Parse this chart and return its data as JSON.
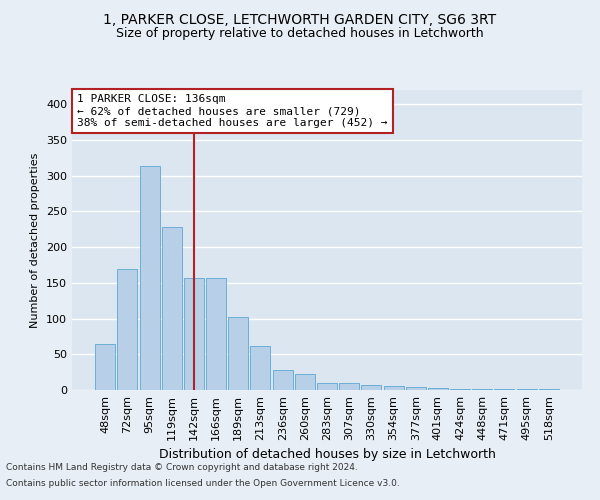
{
  "title1": "1, PARKER CLOSE, LETCHWORTH GARDEN CITY, SG6 3RT",
  "title2": "Size of property relative to detached houses in Letchworth",
  "xlabel": "Distribution of detached houses by size in Letchworth",
  "ylabel": "Number of detached properties",
  "categories": [
    "48sqm",
    "72sqm",
    "95sqm",
    "119sqm",
    "142sqm",
    "166sqm",
    "189sqm",
    "213sqm",
    "236sqm",
    "260sqm",
    "283sqm",
    "307sqm",
    "330sqm",
    "354sqm",
    "377sqm",
    "401sqm",
    "424sqm",
    "448sqm",
    "471sqm",
    "495sqm",
    "518sqm"
  ],
  "values": [
    65,
    170,
    313,
    228,
    157,
    157,
    102,
    62,
    28,
    22,
    10,
    10,
    7,
    5,
    4,
    3,
    1,
    1,
    1,
    1,
    2
  ],
  "bar_color": "#b8cfe8",
  "bar_edge_color": "#6baed6",
  "vline_color": "#b22222",
  "annotation_box_text": "1 PARKER CLOSE: 136sqm\n← 62% of detached houses are smaller (729)\n38% of semi-detached houses are larger (452) →",
  "annotation_box_color": "#b22222",
  "ylim": [
    0,
    420
  ],
  "yticks": [
    0,
    50,
    100,
    150,
    200,
    250,
    300,
    350,
    400
  ],
  "plot_bg_color": "#dce6f0",
  "fig_bg_color": "#e8eef5",
  "grid_color": "#ffffff",
  "footer1": "Contains HM Land Registry data © Crown copyright and database right 2024.",
  "footer2": "Contains public sector information licensed under the Open Government Licence v3.0.",
  "title1_fontsize": 10,
  "title2_fontsize": 9,
  "xlabel_fontsize": 9,
  "ylabel_fontsize": 8,
  "tick_fontsize": 8,
  "ann_fontsize": 8,
  "footer_fontsize": 6.5
}
